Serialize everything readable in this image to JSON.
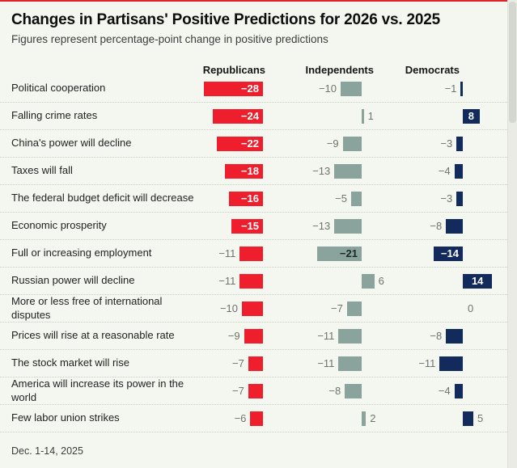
{
  "header": {
    "title": "Changes in Partisans' Positive Predictions for 2026 vs. 2025",
    "subtitle": "Figures represent percentage-point change in positive predictions"
  },
  "columns": [
    {
      "label": "Republicans",
      "color": "#ef1e2d"
    },
    {
      "label": "Independents",
      "color": "#8ba39d"
    },
    {
      "label": "Democrats",
      "color": "#122b5c"
    }
  ],
  "footer": {
    "date_note": "Dec. 1-14, 2025"
  },
  "chart_data": {
    "type": "bar",
    "orientation": "horizontal",
    "title": "Changes in Partisans' Positive Predictions for 2026 vs. 2025",
    "subtitle": "Figures represent percentage-point change in positive predictions",
    "note": "Dec. 1-14, 2025",
    "unit": "percentage-point change",
    "xlim": [
      -28,
      14
    ],
    "grid": false,
    "legend_position": "column-headers-top",
    "categories": [
      "Political cooperation",
      "Falling crime rates",
      "China's power will decline",
      "Taxes will fall",
      "The federal budget deficit will decrease",
      "Economic prosperity",
      "Full or increasing employment",
      "Russian power will decline",
      "More or less free of international disputes",
      "Prices will rise at a reasonable rate",
      "The stock market will rise",
      "America will increase its power in the world",
      "Few labor union strikes"
    ],
    "series": [
      {
        "name": "Republicans",
        "color": "#ef1e2d",
        "inside_label_color": "#ffffff",
        "values": [
          -28,
          -24,
          -22,
          -18,
          -16,
          -15,
          -11,
          -11,
          -10,
          -9,
          -7,
          -7,
          -6
        ],
        "label_inside": [
          true,
          true,
          true,
          true,
          true,
          true,
          false,
          false,
          false,
          false,
          false,
          false,
          false
        ]
      },
      {
        "name": "Independents",
        "color": "#8ba39d",
        "inside_label_color": "#1d2a26",
        "values": [
          -10,
          1,
          -9,
          -13,
          -5,
          -13,
          -21,
          6,
          -7,
          -11,
          -11,
          -8,
          2
        ],
        "label_inside": [
          false,
          false,
          false,
          false,
          false,
          false,
          true,
          false,
          false,
          false,
          false,
          false,
          false
        ]
      },
      {
        "name": "Democrats",
        "color": "#122b5c",
        "inside_label_color": "#ffffff",
        "values": [
          -1,
          8,
          -3,
          -4,
          -3,
          -8,
          -14,
          14,
          0,
          -8,
          -11,
          -4,
          5
        ],
        "label_inside": [
          false,
          true,
          false,
          false,
          false,
          false,
          true,
          true,
          false,
          false,
          false,
          false,
          false
        ]
      }
    ]
  }
}
